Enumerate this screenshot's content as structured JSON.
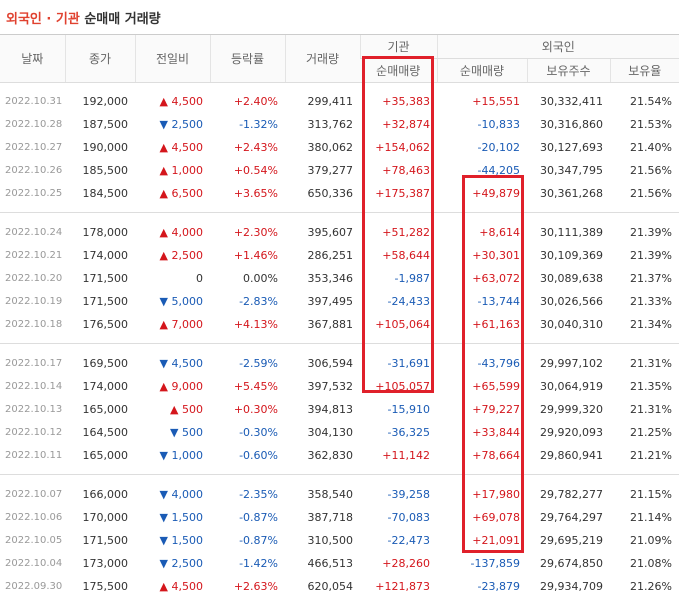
{
  "header": {
    "title_highlight": "외국인 · 기관",
    "title": "순매매 거래량"
  },
  "table": {
    "columns": [
      "날짜",
      "종가",
      "전일비",
      "등락률",
      "거래량"
    ],
    "groups": [
      "기관",
      "외국인"
    ],
    "subcolumns": [
      "순매매량",
      "순매매량",
      "보유주수",
      "보유율"
    ],
    "sections": [
      [
        [
          "2022.10.31",
          "192,000",
          "▲ 4,500",
          "+2.40%",
          "299,411",
          "+35,383",
          "+15,551",
          "30,332,411",
          "21.54%"
        ],
        [
          "2022.10.28",
          "187,500",
          "▼ 2,500",
          "-1.32%",
          "313,762",
          "+32,874",
          "-10,833",
          "30,316,860",
          "21.53%"
        ],
        [
          "2022.10.27",
          "190,000",
          "▲ 4,500",
          "+2.43%",
          "380,062",
          "+154,062",
          "-20,102",
          "30,127,693",
          "21.40%"
        ],
        [
          "2022.10.26",
          "185,500",
          "▲ 1,000",
          "+0.54%",
          "379,277",
          "+78,463",
          "-44,205",
          "30,347,795",
          "21.56%"
        ],
        [
          "2022.10.25",
          "184,500",
          "▲ 6,500",
          "+3.65%",
          "650,336",
          "+175,387",
          "+49,879",
          "30,361,268",
          "21.56%"
        ]
      ],
      [
        [
          "2022.10.24",
          "178,000",
          "▲ 4,000",
          "+2.30%",
          "395,607",
          "+51,282",
          "+8,614",
          "30,111,389",
          "21.39%"
        ],
        [
          "2022.10.21",
          "174,000",
          "▲ 2,500",
          "+1.46%",
          "286,251",
          "+58,644",
          "+30,301",
          "30,109,369",
          "21.39%"
        ],
        [
          "2022.10.20",
          "171,500",
          "0",
          "0.00%",
          "353,346",
          "-1,987",
          "+63,072",
          "30,089,638",
          "21.37%"
        ],
        [
          "2022.10.19",
          "171,500",
          "▼ 5,000",
          "-2.83%",
          "397,495",
          "-24,433",
          "-13,744",
          "30,026,566",
          "21.33%"
        ],
        [
          "2022.10.18",
          "176,500",
          "▲ 7,000",
          "+4.13%",
          "367,881",
          "+105,064",
          "+61,163",
          "30,040,310",
          "21.34%"
        ]
      ],
      [
        [
          "2022.10.17",
          "169,500",
          "▼ 4,500",
          "-2.59%",
          "306,594",
          "-31,691",
          "-43,796",
          "29,997,102",
          "21.31%"
        ],
        [
          "2022.10.14",
          "174,000",
          "▲ 9,000",
          "+5.45%",
          "397,532",
          "+105,057",
          "+65,599",
          "30,064,919",
          "21.35%"
        ],
        [
          "2022.10.13",
          "165,000",
          "▲ 500",
          "+0.30%",
          "394,813",
          "-15,910",
          "+79,227",
          "29,999,320",
          "21.31%"
        ],
        [
          "2022.10.12",
          "164,500",
          "▼ 500",
          "-0.30%",
          "304,130",
          "-36,325",
          "+33,844",
          "29,920,093",
          "21.25%"
        ],
        [
          "2022.10.11",
          "165,000",
          "▼ 1,000",
          "-0.60%",
          "362,830",
          "+11,142",
          "+78,664",
          "29,860,941",
          "21.21%"
        ]
      ],
      [
        [
          "2022.10.07",
          "166,000",
          "▼ 4,000",
          "-2.35%",
          "358,540",
          "-39,258",
          "+17,980",
          "29,782,277",
          "21.15%"
        ],
        [
          "2022.10.06",
          "170,000",
          "▼ 1,500",
          "-0.87%",
          "387,718",
          "-70,083",
          "+69,078",
          "29,764,297",
          "21.14%"
        ],
        [
          "2022.10.05",
          "171,500",
          "▼ 1,500",
          "-0.87%",
          "310,500",
          "-22,473",
          "+21,091",
          "29,695,219",
          "21.09%"
        ],
        [
          "2022.10.04",
          "173,000",
          "▼ 2,500",
          "-1.42%",
          "466,513",
          "+28,260",
          "-137,859",
          "29,674,850",
          "21.08%"
        ],
        [
          "2022.09.30",
          "175,500",
          "▲ 4,500",
          "+2.63%",
          "620,054",
          "+121,873",
          "-23,879",
          "29,934,709",
          "21.26%"
        ]
      ]
    ]
  }
}
